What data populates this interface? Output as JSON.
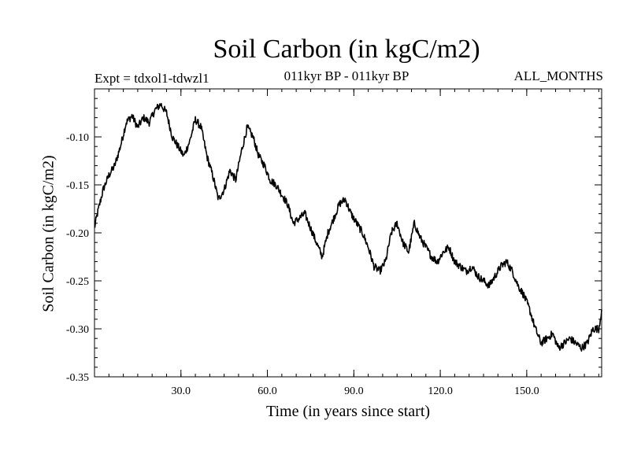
{
  "chart_data": {
    "type": "line",
    "title": "Soil Carbon (in kgC/m2)",
    "experiment": "Expt = tdxol1-tdwzl1",
    "subtitle": "011kyr BP - 011kyr BP",
    "period": "ALL_MONTHS",
    "xlabel": "Time (in years since start)",
    "ylabel": "Soil Carbon (in kgC/m2)",
    "xlim": [
      0,
      176
    ],
    "ylim": [
      -0.35,
      -0.05
    ],
    "x_ticks": [
      30,
      60,
      90,
      120,
      150
    ],
    "x_tick_labels": [
      "30.0",
      "60.0",
      "90.0",
      "120.0",
      "150.0"
    ],
    "y_ticks": [
      -0.35,
      -0.3,
      -0.25,
      -0.2,
      -0.15,
      -0.1
    ],
    "y_tick_labels": [
      "-0.35",
      "-0.30",
      "-0.25",
      "-0.20",
      "-0.15",
      "-0.10"
    ],
    "series": [
      {
        "name": "Soil Carbon",
        "x": [
          0,
          1,
          3,
          5,
          7,
          9,
          11,
          13,
          15,
          17,
          19,
          21,
          23,
          25,
          27,
          29,
          31,
          33,
          35,
          37,
          39,
          41,
          43,
          45,
          47,
          49,
          51,
          53,
          55,
          57,
          59,
          61,
          63,
          65,
          67,
          69,
          71,
          73,
          75,
          77,
          79,
          81,
          83,
          85,
          87,
          89,
          91,
          93,
          95,
          97,
          99,
          101,
          103,
          105,
          107,
          109,
          111,
          113,
          115,
          117,
          119,
          121,
          123,
          125,
          127,
          129,
          131,
          133,
          135,
          137,
          139,
          141,
          143,
          145,
          147,
          149,
          151,
          153,
          155,
          157,
          159,
          161,
          163,
          165,
          167,
          169,
          171,
          173,
          175,
          176
        ],
        "y": [
          -0.195,
          -0.18,
          -0.155,
          -0.14,
          -0.13,
          -0.11,
          -0.085,
          -0.078,
          -0.09,
          -0.08,
          -0.085,
          -0.072,
          -0.066,
          -0.075,
          -0.1,
          -0.11,
          -0.12,
          -0.105,
          -0.082,
          -0.09,
          -0.12,
          -0.14,
          -0.165,
          -0.155,
          -0.135,
          -0.145,
          -0.115,
          -0.09,
          -0.1,
          -0.12,
          -0.13,
          -0.145,
          -0.15,
          -0.16,
          -0.17,
          -0.19,
          -0.185,
          -0.18,
          -0.195,
          -0.21,
          -0.225,
          -0.2,
          -0.185,
          -0.17,
          -0.165,
          -0.18,
          -0.19,
          -0.2,
          -0.215,
          -0.235,
          -0.24,
          -0.23,
          -0.2,
          -0.19,
          -0.21,
          -0.22,
          -0.19,
          -0.205,
          -0.215,
          -0.225,
          -0.23,
          -0.22,
          -0.215,
          -0.23,
          -0.235,
          -0.24,
          -0.235,
          -0.245,
          -0.25,
          -0.255,
          -0.245,
          -0.235,
          -0.23,
          -0.24,
          -0.255,
          -0.265,
          -0.28,
          -0.3,
          -0.315,
          -0.31,
          -0.305,
          -0.32,
          -0.315,
          -0.31,
          -0.315,
          -0.32,
          -0.315,
          -0.3,
          -0.3,
          -0.28
        ]
      }
    ]
  }
}
